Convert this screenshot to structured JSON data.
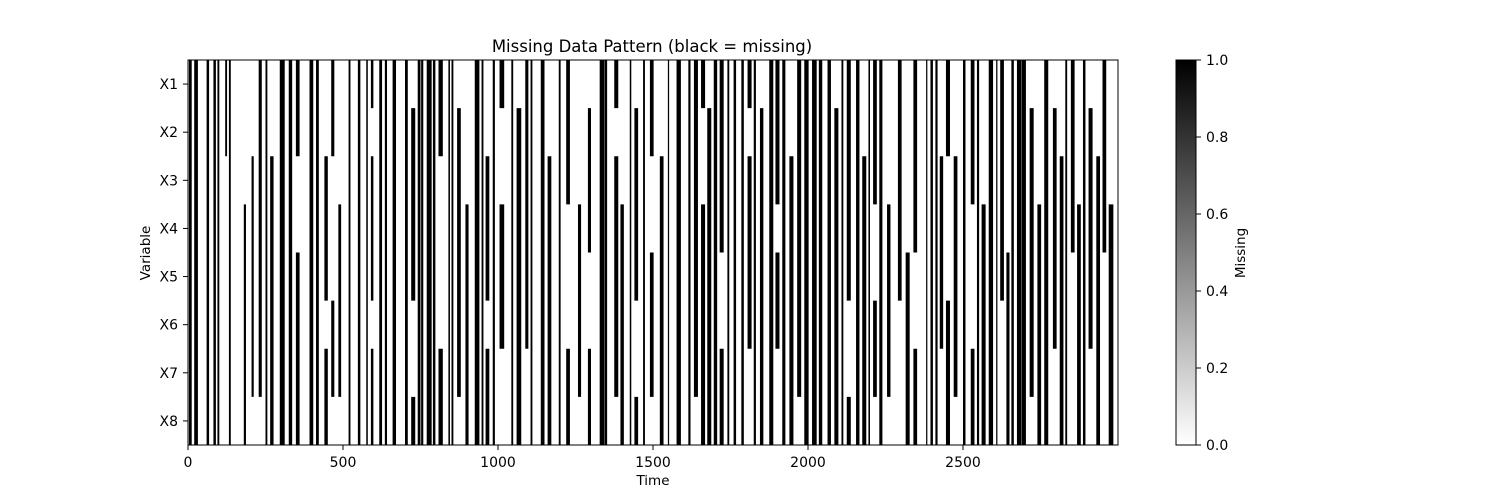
{
  "chart_data": {
    "type": "heatmap",
    "title": "Missing Data Pattern (black = missing)",
    "xlabel": "Time",
    "ylabel": "Variable",
    "variables": [
      "X1",
      "X2",
      "X3",
      "X4",
      "X5",
      "X6",
      "X7",
      "X8"
    ],
    "xlim": [
      0,
      3000
    ],
    "x_ticks": [
      "0",
      "500",
      "1000",
      "1500",
      "2000",
      "2500"
    ],
    "colormap": "gray_r",
    "grid": false,
    "colorbar": {
      "label": "Missing",
      "range": [
        0.0,
        1.0
      ],
      "ticks": [
        "0.0",
        "0.2",
        "0.4",
        "0.6",
        "0.8",
        "1.0"
      ]
    },
    "missing_intervals_all_variables": [
      [
        3,
        12
      ],
      [
        20,
        32
      ],
      [
        60,
        68
      ],
      [
        82,
        90
      ],
      [
        95,
        101
      ],
      [
        132,
        138
      ],
      [
        250,
        256
      ],
      [
        296,
        312
      ],
      [
        325,
        336
      ],
      [
        392,
        404
      ],
      [
        413,
        422
      ],
      [
        518,
        524
      ],
      [
        548,
        556
      ],
      [
        575,
        580
      ],
      [
        617,
        626
      ],
      [
        635,
        642
      ],
      [
        660,
        671
      ],
      [
        700,
        709
      ],
      [
        741,
        750
      ],
      [
        752,
        759
      ],
      [
        770,
        786
      ],
      [
        790,
        798
      ],
      [
        840,
        845
      ],
      [
        850,
        856
      ],
      [
        925,
        940
      ],
      [
        947,
        953
      ],
      [
        983,
        990
      ],
      [
        1043,
        1049
      ],
      [
        1105,
        1111
      ],
      [
        1138,
        1150
      ],
      [
        1196,
        1202
      ],
      [
        1328,
        1342
      ],
      [
        1343,
        1352
      ],
      [
        1425,
        1430
      ],
      [
        1468,
        1474
      ],
      [
        1548,
        1552
      ],
      [
        1576,
        1590
      ],
      [
        1614,
        1621
      ],
      [
        1696,
        1707
      ],
      [
        1740,
        1746
      ],
      [
        1760,
        1768
      ],
      [
        1785,
        1793
      ],
      [
        1825,
        1832
      ],
      [
        1875,
        1888
      ],
      [
        1917,
        1927
      ],
      [
        1988,
        2002
      ],
      [
        2013,
        2028
      ],
      [
        2035,
        2046
      ],
      [
        2063,
        2074
      ],
      [
        2108,
        2114
      ],
      [
        2155,
        2166
      ],
      [
        2195,
        2200
      ],
      [
        2230,
        2240
      ],
      [
        2381,
        2385
      ],
      [
        2395,
        2403
      ],
      [
        2411,
        2418
      ],
      [
        2500,
        2508
      ],
      [
        2545,
        2552
      ],
      [
        2583,
        2597
      ],
      [
        2607,
        2611
      ],
      [
        2656,
        2664
      ],
      [
        2674,
        2689
      ],
      [
        2690,
        2703
      ],
      [
        2830,
        2836
      ],
      [
        2887,
        2895
      ]
    ],
    "missing_stripes_per_variable": [
      {
        "start": 120,
        "end": 126,
        "rows": [
          0,
          1
        ]
      },
      {
        "start": 180,
        "end": 187,
        "rows": [
          3,
          4,
          5,
          6,
          7
        ]
      },
      {
        "start": 205,
        "end": 212,
        "rows": [
          2,
          3,
          4,
          5,
          6
        ]
      },
      {
        "start": 228,
        "end": 238,
        "rows": [
          0,
          1,
          2,
          3,
          4,
          5,
          6
        ]
      },
      {
        "start": 265,
        "end": 276,
        "rows": [
          2,
          3,
          4,
          5,
          6,
          7
        ]
      },
      {
        "start": 348,
        "end": 360,
        "rows": [
          0,
          1,
          4,
          5,
          6,
          7
        ]
      },
      {
        "start": 440,
        "end": 451,
        "rows": [
          2,
          3,
          4,
          6,
          7
        ]
      },
      {
        "start": 462,
        "end": 472,
        "rows": [
          0,
          1,
          5,
          6
        ]
      },
      {
        "start": 485,
        "end": 494,
        "rows": [
          3,
          4,
          5,
          6
        ]
      },
      {
        "start": 590,
        "end": 598,
        "rows": [
          0,
          2,
          3,
          4,
          6,
          7
        ]
      },
      {
        "start": 720,
        "end": 733,
        "rows": [
          1,
          2,
          3,
          4,
          7
        ]
      },
      {
        "start": 808,
        "end": 822,
        "rows": [
          0,
          1,
          6,
          7
        ]
      },
      {
        "start": 868,
        "end": 880,
        "rows": [
          1,
          2,
          3,
          4,
          5,
          6
        ]
      },
      {
        "start": 895,
        "end": 905,
        "rows": [
          3,
          4,
          5,
          6,
          7
        ]
      },
      {
        "start": 960,
        "end": 972,
        "rows": [
          2,
          3,
          4,
          6,
          7
        ]
      },
      {
        "start": 1005,
        "end": 1020,
        "rows": [
          0,
          3,
          4,
          5
        ]
      },
      {
        "start": 1060,
        "end": 1075,
        "rows": [
          1,
          2,
          3,
          4,
          5,
          6,
          7
        ]
      },
      {
        "start": 1088,
        "end": 1098,
        "rows": [
          0,
          1,
          2,
          3,
          4,
          5
        ]
      },
      {
        "start": 1160,
        "end": 1172,
        "rows": [
          2,
          3,
          4,
          5,
          6,
          7
        ]
      },
      {
        "start": 1220,
        "end": 1232,
        "rows": [
          0,
          1,
          2,
          6,
          7
        ]
      },
      {
        "start": 1258,
        "end": 1268,
        "rows": [
          3,
          4,
          5,
          6
        ]
      },
      {
        "start": 1290,
        "end": 1300,
        "rows": [
          1,
          2,
          3,
          6,
          7
        ]
      },
      {
        "start": 1375,
        "end": 1388,
        "rows": [
          0,
          2,
          3,
          4,
          5,
          6
        ]
      },
      {
        "start": 1395,
        "end": 1406,
        "rows": [
          3,
          4,
          5,
          6,
          7
        ]
      },
      {
        "start": 1440,
        "end": 1452,
        "rows": [
          1,
          2,
          3,
          4,
          7
        ]
      },
      {
        "start": 1490,
        "end": 1502,
        "rows": [
          0,
          1,
          4,
          5,
          6
        ]
      },
      {
        "start": 1522,
        "end": 1534,
        "rows": [
          2,
          3,
          4,
          5,
          6,
          7
        ]
      },
      {
        "start": 1632,
        "end": 1645,
        "rows": [
          0,
          1,
          2,
          3,
          4,
          5,
          6
        ]
      },
      {
        "start": 1655,
        "end": 1668,
        "rows": [
          0,
          3,
          4,
          5,
          6,
          7
        ]
      },
      {
        "start": 1675,
        "end": 1688,
        "rows": [
          1,
          2,
          3,
          4,
          5,
          6,
          7
        ]
      },
      {
        "start": 1715,
        "end": 1728,
        "rows": [
          0,
          1,
          2,
          3,
          6,
          7
        ]
      },
      {
        "start": 1805,
        "end": 1818,
        "rows": [
          0,
          2,
          3,
          4,
          5
        ]
      },
      {
        "start": 1845,
        "end": 1856,
        "rows": [
          1,
          2,
          3,
          4,
          5,
          6,
          7
        ]
      },
      {
        "start": 1895,
        "end": 1908,
        "rows": [
          0,
          1,
          2,
          4,
          5
        ]
      },
      {
        "start": 1940,
        "end": 1953,
        "rows": [
          2,
          3,
          4,
          5,
          6,
          7
        ]
      },
      {
        "start": 1965,
        "end": 1978,
        "rows": [
          0,
          1,
          2,
          3,
          4,
          5,
          6
        ]
      },
      {
        "start": 2085,
        "end": 2098,
        "rows": [
          1,
          2,
          3,
          4,
          5,
          6,
          7
        ]
      },
      {
        "start": 2125,
        "end": 2138,
        "rows": [
          0,
          1,
          2,
          3,
          4,
          7
        ]
      },
      {
        "start": 2175,
        "end": 2188,
        "rows": [
          2,
          3,
          4,
          5,
          6,
          7
        ]
      },
      {
        "start": 2210,
        "end": 2222,
        "rows": [
          0,
          1,
          2,
          5,
          6
        ]
      },
      {
        "start": 2255,
        "end": 2266,
        "rows": [
          3,
          4,
          5,
          6
        ]
      },
      {
        "start": 2290,
        "end": 2302,
        "rows": [
          0,
          1,
          2,
          3,
          4
        ]
      },
      {
        "start": 2315,
        "end": 2328,
        "rows": [
          4,
          5,
          6,
          7
        ]
      },
      {
        "start": 2340,
        "end": 2352,
        "rows": [
          0,
          1,
          2,
          3,
          6,
          7
        ]
      },
      {
        "start": 2425,
        "end": 2436,
        "rows": [
          2,
          3,
          4,
          5
        ]
      },
      {
        "start": 2445,
        "end": 2458,
        "rows": [
          0,
          1,
          5,
          6,
          7
        ]
      },
      {
        "start": 2470,
        "end": 2482,
        "rows": [
          2,
          3,
          4,
          5,
          6
        ]
      },
      {
        "start": 2525,
        "end": 2537,
        "rows": [
          0,
          1,
          2,
          6,
          7
        ]
      },
      {
        "start": 2560,
        "end": 2573,
        "rows": [
          3,
          4,
          5,
          6,
          7
        ]
      },
      {
        "start": 2620,
        "end": 2632,
        "rows": [
          0,
          1,
          2,
          3,
          4
        ]
      },
      {
        "start": 2640,
        "end": 2650,
        "rows": [
          4,
          5,
          6,
          7
        ]
      },
      {
        "start": 2715,
        "end": 2728,
        "rows": [
          1,
          2,
          3,
          4,
          5,
          6
        ]
      },
      {
        "start": 2740,
        "end": 2752,
        "rows": [
          3,
          4,
          5,
          6,
          7
        ]
      },
      {
        "start": 2762,
        "end": 2775,
        "rows": [
          0,
          1,
          2,
          3,
          4,
          5,
          6,
          7
        ]
      },
      {
        "start": 2790,
        "end": 2802,
        "rows": [
          1,
          2,
          3,
          4,
          5
        ]
      },
      {
        "start": 2812,
        "end": 2824,
        "rows": [
          2,
          3,
          4,
          5,
          6,
          7
        ]
      },
      {
        "start": 2848,
        "end": 2860,
        "rows": [
          0,
          1,
          2,
          3
        ]
      },
      {
        "start": 2868,
        "end": 2880,
        "rows": [
          3,
          4,
          5,
          6,
          7
        ]
      },
      {
        "start": 2905,
        "end": 2918,
        "rows": [
          1,
          2,
          3,
          4,
          5
        ]
      },
      {
        "start": 2930,
        "end": 2942,
        "rows": [
          2,
          3,
          4,
          5,
          6,
          7
        ]
      },
      {
        "start": 2950,
        "end": 2962,
        "rows": [
          0,
          1,
          2,
          3
        ]
      },
      {
        "start": 2970,
        "end": 2985,
        "rows": [
          3,
          4,
          5,
          6,
          7
        ]
      }
    ]
  }
}
